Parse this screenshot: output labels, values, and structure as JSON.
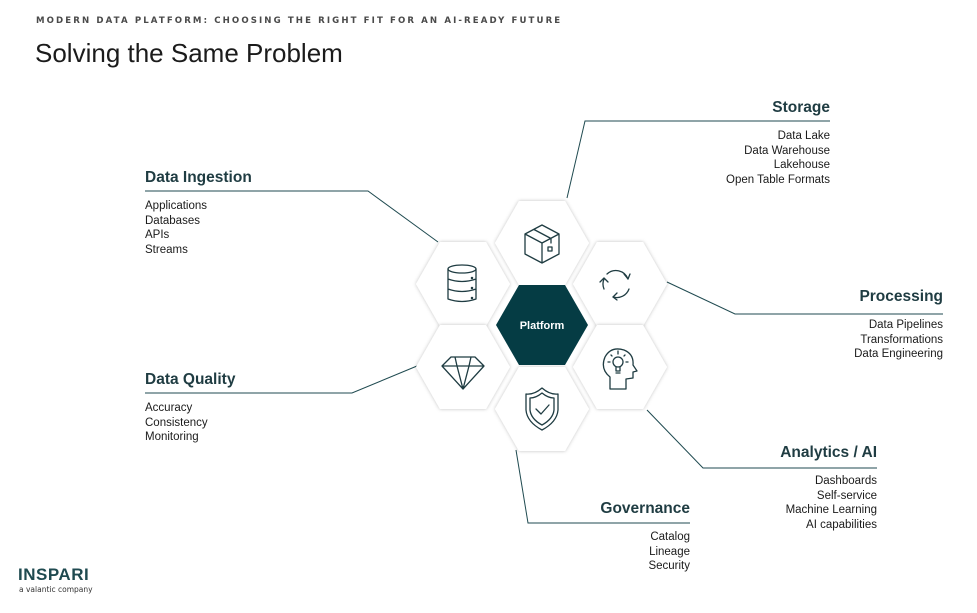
{
  "header": {
    "eyebrow": "MODERN DATA PLATFORM: CHOOSING THE RIGHT FIT FOR AN AI-READY FUTURE",
    "title": "Solving the Same Problem"
  },
  "center": {
    "label": "Platform",
    "color": "#053c44"
  },
  "colors": {
    "accent": "#053c44",
    "line": "#1f4a50"
  },
  "groups": {
    "ingestion": {
      "title": "Data Ingestion",
      "icon": "database-icon",
      "items": [
        "Applications",
        "Databases",
        "APIs",
        "Streams"
      ]
    },
    "storage": {
      "title": "Storage",
      "icon": "box-icon",
      "items": [
        "Data Lake",
        "Data Warehouse",
        "Lakehouse",
        "Open Table Formats"
      ]
    },
    "processing": {
      "title": "Processing",
      "icon": "refresh-cycle-icon",
      "items": [
        "Data Pipelines",
        "Transformations",
        "Data Engineering"
      ]
    },
    "quality": {
      "title": "Data Quality",
      "icon": "diamond-icon",
      "items": [
        "Accuracy",
        "Consistency",
        "Monitoring"
      ]
    },
    "analytics": {
      "title": "Analytics / AI",
      "icon": "head-lightbulb-icon",
      "items": [
        "Dashboards",
        "Self-service",
        "Machine Learning",
        "AI capabilities"
      ]
    },
    "governance": {
      "title": "Governance",
      "icon": "shield-check-icon",
      "items": [
        "Catalog",
        "Lineage",
        "Security"
      ]
    }
  },
  "logo": {
    "name": "INSPARI",
    "tagline": "a valantic company"
  }
}
